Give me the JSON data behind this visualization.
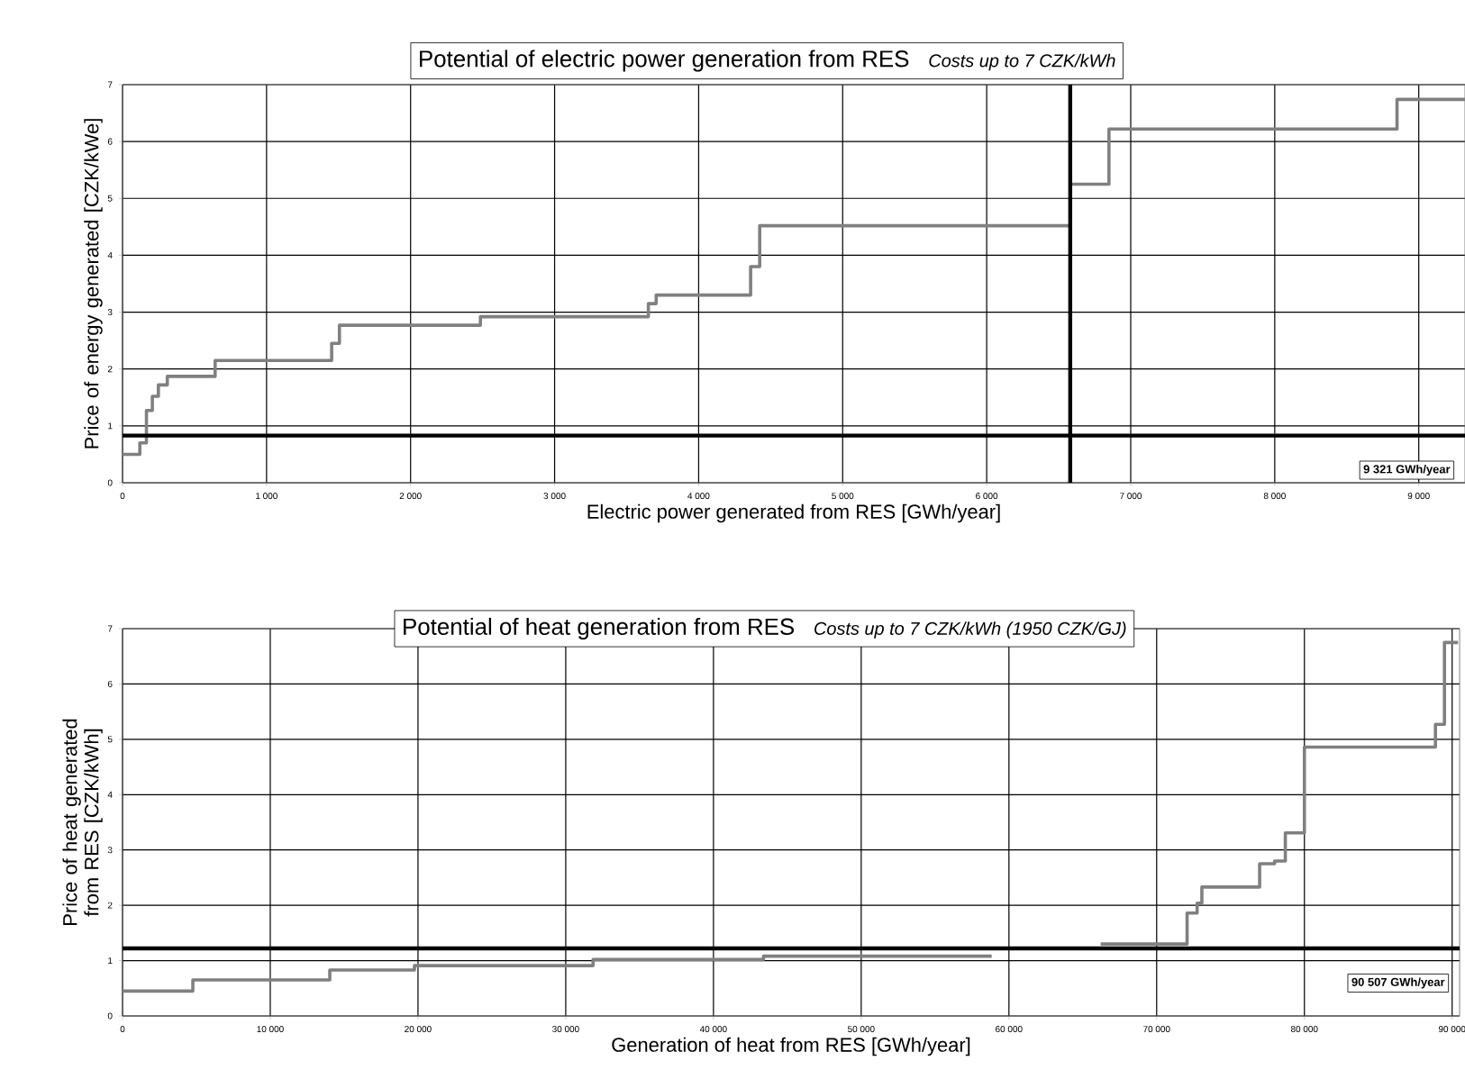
{
  "chart_data": [
    {
      "type": "step",
      "title": "Potential of electric power generation from RES",
      "subtitle": "Costs up to 7 CZK/kWh",
      "xlabel": "Electric power generated from RES [GWh/year]",
      "ylabel": "Price of energy generated [CZK/kWe]",
      "series": [
        {
          "color": "#808080",
          "x": [
            0,
            120,
            166,
            207,
            249,
            311,
            643,
            1452,
            1506,
            2485,
            3651,
            3705,
            4361,
            4424,
            6580,
            6849,
            8849,
            9321
          ],
          "values": [
            0.5,
            0.7,
            1.27,
            1.52,
            1.72,
            1.87,
            2.15,
            2.45,
            2.77,
            2.92,
            3.15,
            3.3,
            3.8,
            4.52,
            5.25,
            6.22,
            6.74,
            6.74
          ]
        }
      ],
      "xlim": [
        0,
        9321
      ],
      "ylim": [
        0,
        7
      ],
      "xticks": [
        0,
        {
          "value": 1000,
          "label": "1 000"
        },
        {
          "value": 2000,
          "label": "2 000"
        },
        {
          "value": 3000,
          "label": "3 000"
        },
        {
          "value": 4000,
          "label": "4 000"
        },
        {
          "value": 5000,
          "label": "5 000"
        },
        {
          "value": 6000,
          "label": "6 000"
        },
        {
          "value": 7000,
          "label": "7 000"
        },
        {
          "value": 8000,
          "label": "8 000"
        },
        {
          "value": 9000,
          "label": "9 000"
        }
      ],
      "yticks": [
        0,
        1,
        2,
        3,
        4,
        5,
        6,
        7
      ],
      "ref_lines": [
        {
          "axis": "y",
          "value": 0.83,
          "color": "#000000"
        },
        {
          "axis": "x",
          "value": 6580,
          "color": "#000000"
        }
      ],
      "annotations": [
        {
          "text": "9 321 GWh/year",
          "x": 9321,
          "y": 0.83
        }
      ],
      "grid": true
    },
    {
      "type": "step",
      "title": "Potential of heat generation from RES",
      "subtitle": "Costs up to 7 CZK/kWh (1950 CZK/GJ)",
      "xlabel": "Generation of heat from RES [GWh/year]",
      "ylabel": "Price of heat generated from RES [CZK/kWh]",
      "series": [
        {
          "color": "#808080",
          "x": [
            0,
            4760,
            14030,
            19760,
            31850,
            43390,
            58830,
            62000,
            66210,
            72060,
            72740,
            73060,
            76970,
            77980,
            78710,
            80000,
            88870,
            89480,
            90400
          ],
          "values": [
            0.45,
            0.65,
            0.83,
            0.91,
            1.02,
            1.08,
            1.08,
            null,
            1.3,
            1.86,
            2.04,
            2.33,
            2.75,
            2.8,
            3.31,
            4.86,
            5.27,
            6.75,
            6.75
          ]
        }
      ],
      "xlim": [
        0,
        90507
      ],
      "ylim": [
        0,
        7
      ],
      "xticks": [
        0,
        {
          "value": 10000,
          "label": "10 000"
        },
        {
          "value": 20000,
          "label": "20 000"
        },
        {
          "value": 30000,
          "label": "30 000"
        },
        {
          "value": 40000,
          "label": "40 000"
        },
        {
          "value": 50000,
          "label": "50 000"
        },
        {
          "value": 60000,
          "label": "60 000"
        },
        {
          "value": 70000,
          "label": "70 000"
        },
        {
          "value": 80000,
          "label": "80 000"
        },
        {
          "value": 90000,
          "label": "90 000"
        }
      ],
      "yticks": [
        0,
        1,
        2,
        3,
        4,
        5,
        6,
        7
      ],
      "ref_lines": [
        {
          "axis": "y",
          "value": 1.22,
          "color": "#000000"
        }
      ],
      "annotations": [
        {
          "text": "90 507 GWh/year",
          "x": 90507,
          "y": 1.22
        }
      ],
      "grid": true
    }
  ]
}
